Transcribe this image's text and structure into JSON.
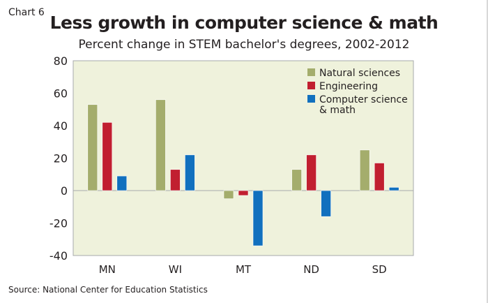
{
  "chart_label": "Chart 6",
  "chart_data": {
    "type": "bar",
    "title": "Less growth in computer science & math",
    "subtitle": "Percent change in STEM bachelor's degrees, 2002-2012",
    "categories": [
      "MN",
      "WI",
      "MT",
      "ND",
      "SD"
    ],
    "series": [
      {
        "name": "Natural sciences",
        "color": "#a4ad6c",
        "values": [
          53,
          56,
          -5,
          13,
          25
        ]
      },
      {
        "name": "Engineering",
        "color": "#c11f30",
        "values": [
          42,
          13,
          -3,
          22,
          17
        ]
      },
      {
        "name": "Computer science & math",
        "name_lines": [
          "Computer science",
          "& math"
        ],
        "color": "#1170be",
        "values": [
          9,
          22,
          -34,
          -16,
          2
        ]
      }
    ],
    "ylim": [
      -40,
      80
    ],
    "yticks": [
      80,
      60,
      40,
      20,
      0,
      -20,
      -40
    ],
    "ytick_labels": [
      "80",
      "60",
      "40",
      "20",
      "0",
      "-20",
      "-40"
    ],
    "xlabel": "",
    "ylabel": "",
    "grid": false,
    "legend": "top-right",
    "plot_background": "#eff2dc"
  },
  "source": "Source: National Center for Education Statistics"
}
